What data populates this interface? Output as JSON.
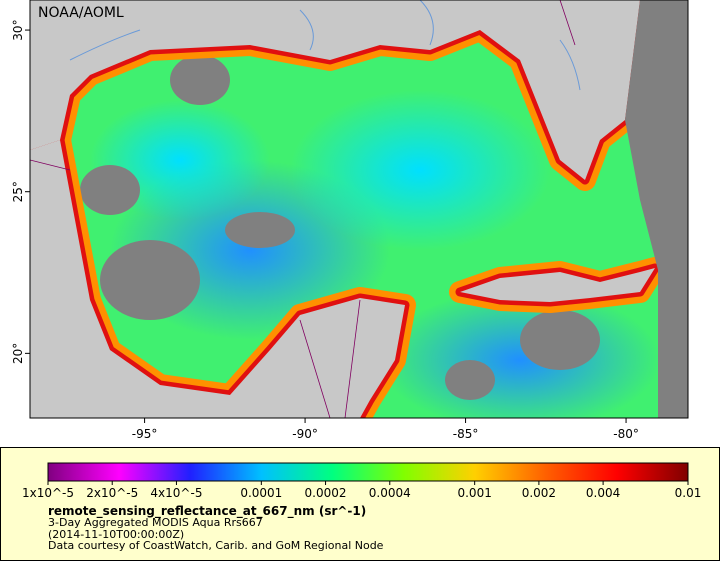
{
  "map": {
    "credit": "NOAA/AOML",
    "xlim": [
      -98.57,
      -78.07
    ],
    "ylim": [
      18.0,
      30.93
    ],
    "lon_ticks": [
      {
        "value": -95,
        "label": "-95°"
      },
      {
        "value": -90,
        "label": "-90°"
      },
      {
        "value": -85,
        "label": "-85°"
      },
      {
        "value": -80,
        "label": "-80°"
      }
    ],
    "lat_ticks": [
      {
        "value": 30,
        "label": "30°"
      },
      {
        "value": 25,
        "label": "25°"
      },
      {
        "value": 20,
        "label": "20°"
      }
    ]
  },
  "colorbar": {
    "log": true,
    "lim": [
      1e-05,
      0.01
    ],
    "colors": [
      "#800080",
      "#ff00ff",
      "#2020ff",
      "#00c0ff",
      "#00ff80",
      "#80ff00",
      "#ffd000",
      "#ff6000",
      "#ff0000",
      "#800000"
    ],
    "ticks": [
      {
        "value": 1e-05,
        "label": "1x10^-5"
      },
      {
        "value": 2e-05,
        "label": "2x10^-5"
      },
      {
        "value": 4e-05,
        "label": "4x10^-5"
      },
      0.0001,
      0.0002,
      0.0004,
      0.001,
      0.002,
      0.004,
      0.01
    ]
  },
  "legend": {
    "title": "remote_sensing_reflectance_at_667_nm (sr^-1)",
    "lines": [
      "3-Day Aggregated MODIS Aqua Rrs667",
      "(2014-11-10T00:00:00Z)",
      "Data courtesy of CoastWatch, Carib. and GoM Regional Node"
    ]
  }
}
